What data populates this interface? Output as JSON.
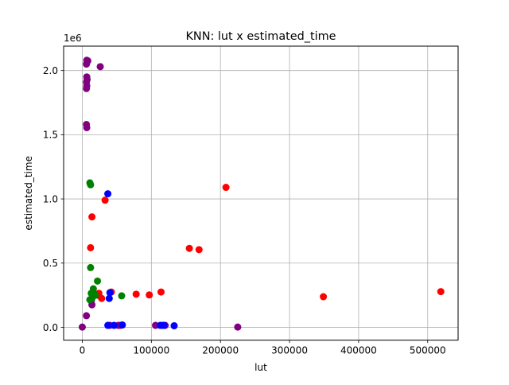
{
  "chart_data": {
    "type": "scatter",
    "title": "KNN: lut x estimated_time",
    "xlabel": "lut",
    "ylabel": "estimated_time",
    "y_offset_label": "1e6",
    "xlim": [
      -27000,
      544000
    ],
    "ylim": [
      -100000,
      2190000
    ],
    "y_scale_factor": 1000000,
    "grid": true,
    "x_ticks": [
      {
        "value": 0,
        "label": "0"
      },
      {
        "value": 100000,
        "label": "100000"
      },
      {
        "value": 200000,
        "label": "200000"
      },
      {
        "value": 300000,
        "label": "300000"
      },
      {
        "value": 400000,
        "label": "400000"
      },
      {
        "value": 500000,
        "label": "500000"
      }
    ],
    "y_ticks": [
      {
        "value": 0,
        "label": "0.0"
      },
      {
        "value": 500000,
        "label": "0.5"
      },
      {
        "value": 1000000,
        "label": "1.0"
      },
      {
        "value": 1500000,
        "label": "1.5"
      },
      {
        "value": 2000000,
        "label": "2.0"
      }
    ],
    "series": [
      {
        "color": "#800080",
        "points": [
          [
            6500,
            2080000
          ],
          [
            6000,
            2050000
          ],
          [
            8000,
            2075000
          ],
          [
            26000,
            2030000
          ],
          [
            6500,
            1950000
          ],
          [
            7000,
            1930000
          ],
          [
            6000,
            1910000
          ],
          [
            6500,
            1880000
          ],
          [
            6000,
            1860000
          ],
          [
            6000,
            1580000
          ],
          [
            6500,
            1555000
          ],
          [
            6000,
            90000
          ],
          [
            0,
            2000
          ],
          [
            14000,
            175000
          ],
          [
            13000,
            205000
          ],
          [
            24000,
            248000
          ],
          [
            106000,
            15000
          ],
          [
            116000,
            15000
          ],
          [
            120000,
            15000
          ],
          [
            225000,
            2000
          ],
          [
            40000,
            15000
          ],
          [
            52000,
            15000
          ],
          [
            55000,
            15000
          ]
        ]
      },
      {
        "color": "#ff0000",
        "points": [
          [
            14000,
            860000
          ],
          [
            12000,
            620000
          ],
          [
            33000,
            990000
          ],
          [
            208000,
            1090000
          ],
          [
            155000,
            615000
          ],
          [
            169000,
            605000
          ],
          [
            20000,
            255000
          ],
          [
            24000,
            265000
          ],
          [
            28000,
            225000
          ],
          [
            42000,
            275000
          ],
          [
            78000,
            258000
          ],
          [
            97000,
            252000
          ],
          [
            114000,
            275000
          ],
          [
            349000,
            238000
          ],
          [
            519000,
            278000
          ]
        ]
      },
      {
        "color": "#0000ff",
        "points": [
          [
            37000,
            1040000
          ],
          [
            40000,
            270000
          ],
          [
            39000,
            225000
          ],
          [
            37000,
            15000
          ],
          [
            46000,
            15000
          ],
          [
            58000,
            18000
          ],
          [
            113000,
            15000
          ],
          [
            118000,
            15000
          ],
          [
            133000,
            12000
          ]
        ]
      },
      {
        "color": "#008000",
        "points": [
          [
            11000,
            1125000
          ],
          [
            12000,
            1110000
          ],
          [
            12000,
            465000
          ],
          [
            22000,
            360000
          ],
          [
            16000,
            300000
          ],
          [
            13000,
            265000
          ],
          [
            19000,
            250000
          ],
          [
            57000,
            245000
          ],
          [
            14000,
            225000
          ],
          [
            11000,
            215000
          ]
        ]
      }
    ]
  }
}
